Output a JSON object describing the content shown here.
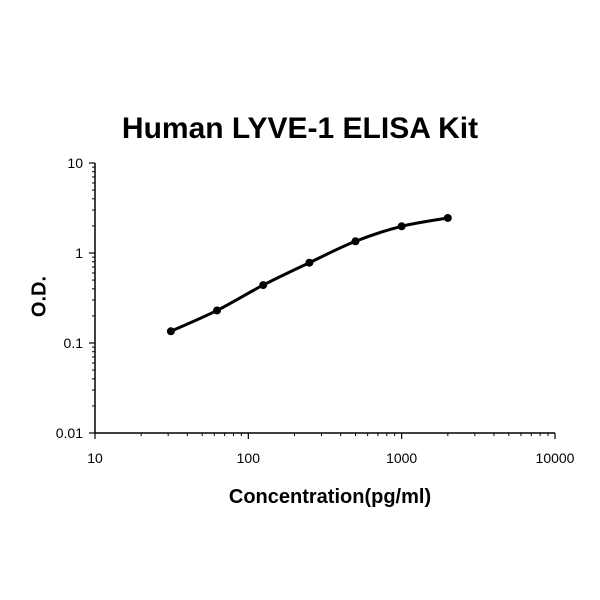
{
  "chart_data": {
    "type": "line",
    "title": "Human LYVE-1 ELISA Kit",
    "xlabel": "Concentration(pg/ml)",
    "ylabel": "O.D.",
    "x_scale": "log",
    "y_scale": "log",
    "xlim": [
      10,
      10000
    ],
    "ylim": [
      0.01,
      10
    ],
    "x_ticks": [
      "10",
      "100",
      "1000",
      "10000"
    ],
    "y_ticks": [
      "0.01",
      "0.1",
      "1",
      "10"
    ],
    "grid": false,
    "series": [
      {
        "x": [
          31.25,
          62.5,
          125,
          250,
          500,
          1000,
          2000
        ],
        "y": [
          0.135,
          0.23,
          0.44,
          0.78,
          1.35,
          1.98,
          2.45
        ]
      }
    ],
    "colors": {
      "line": "#000000"
    }
  }
}
